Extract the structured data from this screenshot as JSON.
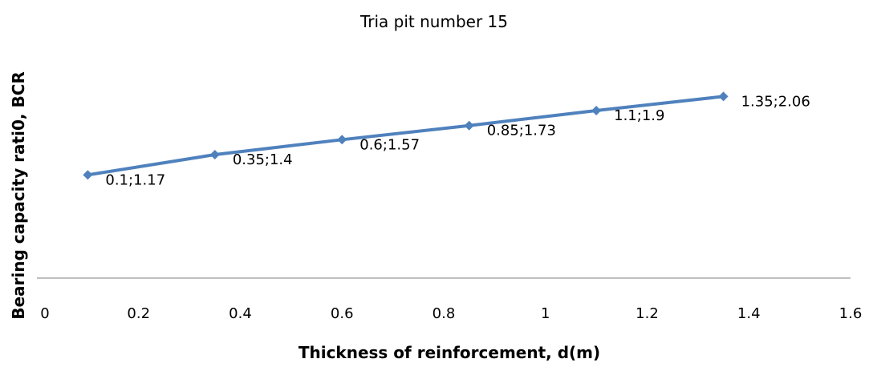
{
  "chart_data": {
    "type": "line",
    "title": "Tria pit number 15",
    "xlabel": "Thickness of reinforcement, d(m)",
    "ylabel": "Bearing capacity rati0, BCR",
    "xlim": [
      0,
      1.6
    ],
    "ylim": [
      0,
      2.5
    ],
    "x_ticks": [
      "0",
      "0.2",
      "0.4",
      "0.6",
      "0.8",
      "1",
      "1.2",
      "1.4",
      "1.6"
    ],
    "y_ticks_visible": false,
    "grid": false,
    "legend": "none",
    "series": [
      {
        "color": "#4F81BD",
        "marker": "diamond",
        "x": [
          0.1,
          0.35,
          0.6,
          0.85,
          1.1,
          1.35
        ],
        "y": [
          1.17,
          1.4,
          1.57,
          1.73,
          1.9,
          2.06
        ],
        "labels": [
          "0.1;1.17",
          "0.35;1.4",
          "0.6;1.57",
          "0.85;1.73",
          "1.1;1.9",
          "1.35;2.06"
        ]
      }
    ]
  }
}
